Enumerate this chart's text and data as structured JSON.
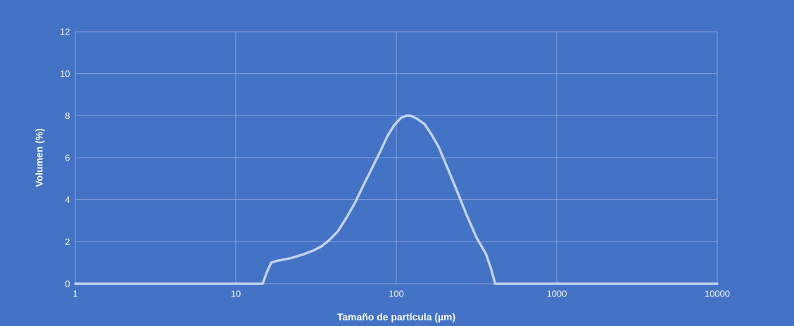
{
  "chart_data": {
    "type": "line",
    "xlabel": "Tamaño de partícula (µm)",
    "ylabel": "Volumen (%)",
    "log": "x",
    "grid": true,
    "marker": "none",
    "line_style": "solid",
    "xlim": [
      1,
      10000
    ],
    "xticks": [
      1,
      10,
      100,
      1000,
      10000
    ],
    "ylim": [
      0,
      12
    ],
    "yticks": [
      0,
      2,
      4,
      6,
      8,
      10,
      12
    ],
    "series": [
      {
        "color": "#c3d2ee",
        "x": [
          1,
          5,
          13,
          14.7,
          15.6,
          16.6,
          18.3,
          22,
          26.1,
          30,
          34.2,
          38.5,
          43.3,
          48.5,
          54.8,
          63,
          71.6,
          80,
          87.7,
          97,
          107,
          115,
          123,
          135,
          150,
          166,
          184,
          210,
          241,
          275,
          316,
          361,
          390,
          413,
          600,
          2000,
          10000
        ],
        "values": [
          0,
          0,
          0,
          0,
          0.55,
          1.0,
          1.1,
          1.22,
          1.39,
          1.56,
          1.78,
          2.1,
          2.5,
          3.1,
          3.8,
          4.75,
          5.6,
          6.35,
          7.0,
          7.55,
          7.9,
          8.0,
          8.0,
          7.85,
          7.6,
          7.1,
          6.5,
          5.45,
          4.35,
          3.25,
          2.2,
          1.44,
          0.7,
          0,
          0,
          0,
          0
        ]
      }
    ]
  }
}
